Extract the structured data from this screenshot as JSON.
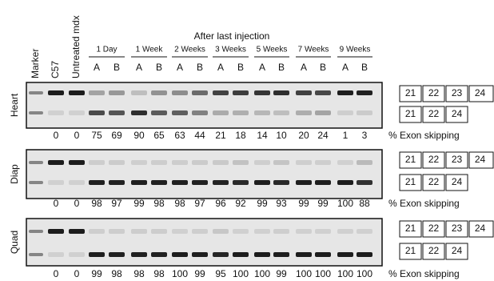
{
  "header": {
    "title": "After last injection",
    "lanes": [
      "Marker",
      "C57",
      "Untreated mdx"
    ],
    "groups": [
      {
        "label": "1 Day",
        "lanes": [
          "A",
          "B"
        ]
      },
      {
        "label": "1 Week",
        "lanes": [
          "A",
          "B"
        ]
      },
      {
        "label": "2 Weeks",
        "lanes": [
          "A",
          "B"
        ]
      },
      {
        "label": "3 Weeks",
        "lanes": [
          "A",
          "B"
        ]
      },
      {
        "label": "5 Weeks",
        "lanes": [
          "A",
          "B"
        ]
      },
      {
        "label": "7 Weeks",
        "lanes": [
          "A",
          "B"
        ]
      },
      {
        "label": "9 Weeks",
        "lanes": [
          "A",
          "B"
        ]
      }
    ]
  },
  "panels": [
    {
      "label": "Heart",
      "exon_skipping": [
        0,
        0,
        75,
        69,
        90,
        65,
        63,
        44,
        21,
        18,
        14,
        10,
        20,
        24,
        1,
        3
      ],
      "exon_skipping_label": "% Exon skipping",
      "full_length_exons": [
        "21",
        "22",
        "23",
        "24"
      ],
      "skipped_exons": [
        "21",
        "22",
        "24"
      ]
    },
    {
      "label": "Diap",
      "exon_skipping": [
        0,
        0,
        98,
        97,
        99,
        98,
        98,
        97,
        96,
        92,
        99,
        93,
        99,
        99,
        100,
        88
      ],
      "exon_skipping_label": "% Exon skipping",
      "full_length_exons": [
        "21",
        "22",
        "23",
        "24"
      ],
      "skipped_exons": [
        "21",
        "22",
        "24"
      ]
    },
    {
      "label": "Quad",
      "exon_skipping": [
        0,
        0,
        99,
        98,
        98,
        98,
        100,
        99,
        95,
        100,
        100,
        99,
        100,
        100,
        100,
        100
      ],
      "exon_skipping_label": "% Exon skipping",
      "full_length_exons": [
        "21",
        "22",
        "23",
        "24"
      ],
      "skipped_exons": [
        "21",
        "22",
        "24"
      ]
    }
  ]
}
